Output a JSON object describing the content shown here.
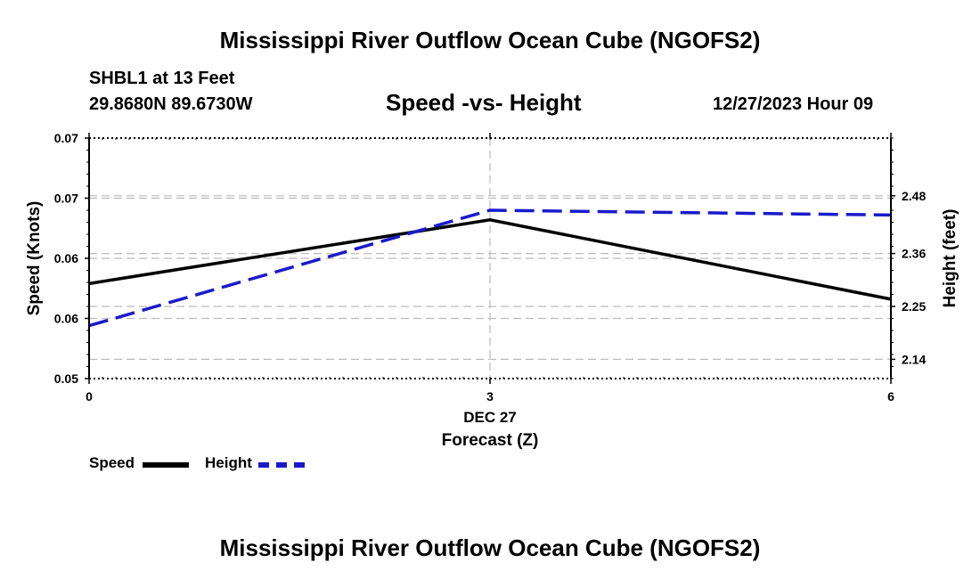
{
  "header": {
    "title": "Mississippi River Outflow Ocean Cube (NGOFS2)",
    "station": "SHBL1 at 13 Feet",
    "coords": "29.8680N  89.6730W",
    "chart_title": "Speed -vs- Height",
    "datetime": "12/27/2023 Hour 09"
  },
  "footer": {
    "title": "Mississippi River Outflow Ocean Cube (NGOFS2)"
  },
  "legend": {
    "speed_label": "Speed",
    "height_label": "Height"
  },
  "colors": {
    "speed": "#000000",
    "height": "#1a1acc",
    "grid": "#bbbbbb"
  },
  "chart_data": {
    "type": "line",
    "title": "Speed -vs- Height",
    "xlabel": "Forecast (Z)",
    "x_date_label": "DEC 27",
    "ylabel": "Speed (Knots)",
    "y2label": "Height (feet)",
    "x": [
      0,
      3,
      6
    ],
    "x_tick_labels": [
      "0",
      "3",
      "6"
    ],
    "xlim": [
      0,
      6
    ],
    "ylim": [
      0.05,
      0.07
    ],
    "y_ticks": [
      0.05,
      0.055,
      0.06,
      0.065,
      0.07
    ],
    "y_tick_labels": [
      "0.05",
      "0.06",
      "0.06",
      "0.07",
      "0.07"
    ],
    "y2lim": [
      2.1,
      2.6
    ],
    "y2_ticks": [
      2.14,
      2.25,
      2.36,
      2.48
    ],
    "y2_tick_labels": [
      "2.14",
      "2.25",
      "2.36",
      "2.48"
    ],
    "series": [
      {
        "name": "Speed",
        "axis": "left",
        "style": "solid",
        "values": [
          0.0579,
          0.0632,
          0.0566
        ]
      },
      {
        "name": "Height",
        "axis": "right",
        "style": "dashed",
        "values": [
          2.21,
          2.45,
          2.44
        ]
      }
    ]
  }
}
